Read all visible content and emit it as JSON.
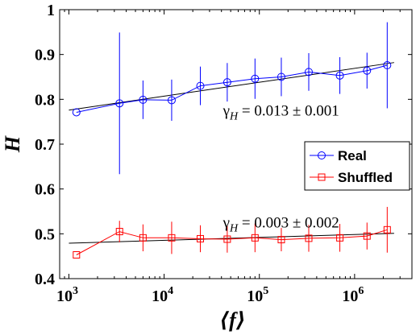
{
  "chart_data": {
    "type": "line",
    "title": "",
    "xlabel": "⟨f⟩",
    "ylabel": "H",
    "x_scale": "log",
    "xlim": [
      800,
      4000000
    ],
    "ylim": [
      0.4,
      1.0
    ],
    "grid": false,
    "legend_position": "right",
    "x_ticks": [
      {
        "value": 1000,
        "label": "10",
        "exp": "3"
      },
      {
        "value": 10000,
        "label": "10",
        "exp": "4"
      },
      {
        "value": 100000,
        "label": "10",
        "exp": "5"
      },
      {
        "value": 1000000,
        "label": "10",
        "exp": "6"
      }
    ],
    "y_ticks": [
      {
        "value": 0.4,
        "label": "0.4"
      },
      {
        "value": 0.5,
        "label": "0.5"
      },
      {
        "value": 0.6,
        "label": "0.6"
      },
      {
        "value": 0.7,
        "label": "0.7"
      },
      {
        "value": 0.8,
        "label": "0.8"
      },
      {
        "value": 0.9,
        "label": "0.9"
      },
      {
        "value": 1.0,
        "label": "1"
      }
    ],
    "series": [
      {
        "name": "Real",
        "color": "#0000ff",
        "marker": "circle",
        "points": [
          {
            "x": 1200,
            "y": 0.771,
            "err": 0.0
          },
          {
            "x": 3400,
            "y": 0.791,
            "err": 0.158
          },
          {
            "x": 6000,
            "y": 0.799,
            "err": 0.043
          },
          {
            "x": 12000,
            "y": 0.798,
            "err": 0.046
          },
          {
            "x": 24000,
            "y": 0.83,
            "err": 0.043
          },
          {
            "x": 46000,
            "y": 0.838,
            "err": 0.043
          },
          {
            "x": 90000,
            "y": 0.846,
            "err": 0.045
          },
          {
            "x": 170000,
            "y": 0.85,
            "err": 0.043
          },
          {
            "x": 330000,
            "y": 0.861,
            "err": 0.042
          },
          {
            "x": 700000,
            "y": 0.853,
            "err": 0.041
          },
          {
            "x": 1350000,
            "y": 0.864,
            "err": 0.04
          },
          {
            "x": 2200000,
            "y": 0.876,
            "err": 0.096
          }
        ],
        "fit": {
          "x": [
            1000,
            2600000
          ],
          "y": [
            0.776,
            0.882
          ]
        }
      },
      {
        "name": "Shuffled",
        "color": "#ff0000",
        "marker": "square",
        "points": [
          {
            "x": 1200,
            "y": 0.453,
            "err": 0.0
          },
          {
            "x": 3400,
            "y": 0.505,
            "err": 0.024
          },
          {
            "x": 6000,
            "y": 0.491,
            "err": 0.03
          },
          {
            "x": 12000,
            "y": 0.491,
            "err": 0.036
          },
          {
            "x": 24000,
            "y": 0.489,
            "err": 0.03
          },
          {
            "x": 46000,
            "y": 0.488,
            "err": 0.03
          },
          {
            "x": 90000,
            "y": 0.491,
            "err": 0.032
          },
          {
            "x": 170000,
            "y": 0.487,
            "err": 0.026
          },
          {
            "x": 330000,
            "y": 0.49,
            "err": 0.03
          },
          {
            "x": 700000,
            "y": 0.491,
            "err": 0.031
          },
          {
            "x": 1350000,
            "y": 0.495,
            "err": 0.03
          },
          {
            "x": 2200000,
            "y": 0.509,
            "err": 0.051
          }
        ],
        "fit": {
          "x": [
            1000,
            2600000
          ],
          "y": [
            0.479,
            0.501
          ]
        }
      }
    ],
    "annotations": [
      {
        "prefix": "γ",
        "sub": "H",
        "text": " = 0.013 ± 0.001",
        "at": {
          "x": 110000,
          "y": 0.775
        }
      },
      {
        "prefix": "γ",
        "sub": "H",
        "text": " = 0.003 ± 0.002",
        "at": {
          "x": 110000,
          "y": 0.525
        }
      }
    ]
  }
}
